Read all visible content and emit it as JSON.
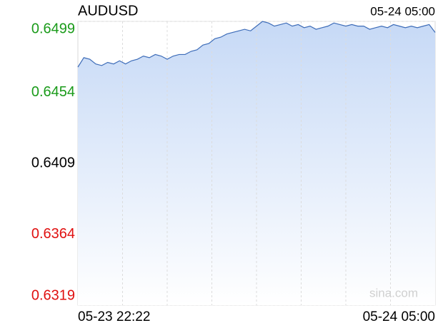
{
  "chart_data": {
    "type": "line",
    "title": "AUDUSD",
    "timestamp": "05-24 05:00",
    "x_labels": [
      "05-23 22:22",
      "05-24 05:00"
    ],
    "watermark": "sina.com",
    "color": "#3d6cb8",
    "fill_color": "#c6d9f6",
    "up_color": "#1a9b1a",
    "down_color": "#e01010",
    "flat_color": "#000000",
    "ylim": [
      0.6319,
      0.6499
    ],
    "yticks": [
      0.6499,
      0.6454,
      0.6409,
      0.6364,
      0.6319
    ],
    "grid": true,
    "values": [
      0.647,
      0.6476,
      0.6475,
      0.6472,
      0.6471,
      0.6473,
      0.6472,
      0.6474,
      0.6472,
      0.6474,
      0.6475,
      0.6477,
      0.6476,
      0.6478,
      0.6477,
      0.6475,
      0.6477,
      0.6478,
      0.6478,
      0.648,
      0.6481,
      0.6484,
      0.6485,
      0.6488,
      0.6489,
      0.6491,
      0.6492,
      0.6493,
      0.6494,
      0.6493,
      0.6496,
      0.6499,
      0.6498,
      0.6496,
      0.6497,
      0.6498,
      0.6496,
      0.6497,
      0.6495,
      0.6496,
      0.6494,
      0.6495,
      0.6496,
      0.6498,
      0.6497,
      0.6496,
      0.6497,
      0.6496,
      0.6496,
      0.6494,
      0.6495,
      0.6496,
      0.6495,
      0.6497,
      0.6496,
      0.6495,
      0.6496,
      0.6495,
      0.6496,
      0.6497,
      0.6492
    ]
  }
}
